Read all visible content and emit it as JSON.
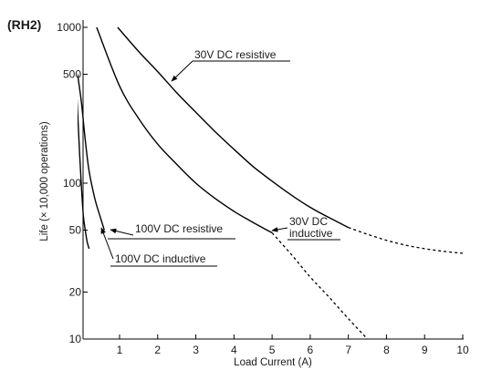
{
  "chart_data": {
    "type": "line",
    "title": "(RH2)",
    "xlabel": "Load Current (A)",
    "ylabel": "Life (× 10,000 operations)",
    "x_scale": "linear",
    "y_scale": "log",
    "xlim": [
      0,
      10
    ],
    "ylim": [
      10,
      1000
    ],
    "x_ticks": [
      1,
      2,
      3,
      4,
      5,
      6,
      7,
      8,
      9,
      10
    ],
    "y_ticks": [
      10,
      20,
      50,
      100,
      500,
      1000
    ],
    "grid": false,
    "legend": "none (series labelled directly on curves)",
    "series": [
      {
        "name": "30V DC resistive",
        "underlined": true,
        "color": "#000000",
        "solid_points": [
          [
            0.95,
            1000
          ],
          [
            1.5,
            700
          ],
          [
            2,
            520
          ],
          [
            2.5,
            380
          ],
          [
            3,
            285
          ],
          [
            3.5,
            215
          ],
          [
            4,
            165
          ],
          [
            4.5,
            128
          ],
          [
            5,
            103
          ],
          [
            5.5,
            84
          ],
          [
            6,
            70
          ],
          [
            6.5,
            60
          ],
          [
            7,
            52
          ]
        ],
        "dashed_points": [
          [
            7,
            52
          ],
          [
            7.5,
            47
          ],
          [
            8,
            43
          ],
          [
            8.5,
            40
          ],
          [
            9,
            38
          ],
          [
            9.5,
            36.5
          ],
          [
            10,
            35.5
          ]
        ]
      },
      {
        "name": "30V DC inductive",
        "name_lines": [
          "30V DC",
          "inductive"
        ],
        "underlined": true,
        "color": "#000000",
        "solid_points": [
          [
            0.4,
            1000
          ],
          [
            1,
            420
          ],
          [
            1.5,
            260
          ],
          [
            2,
            178
          ],
          [
            2.5,
            132
          ],
          [
            3,
            100
          ],
          [
            3.5,
            80
          ],
          [
            4,
            66
          ],
          [
            4.5,
            56
          ],
          [
            5,
            48
          ]
        ],
        "dashed_points": [
          [
            5,
            48
          ],
          [
            5.5,
            35
          ],
          [
            6,
            25
          ],
          [
            6.5,
            18.5
          ],
          [
            7,
            13.5
          ],
          [
            7.5,
            10
          ]
        ]
      },
      {
        "name": "100V DC resistive",
        "underlined": true,
        "color": "#000000",
        "solid_points": [
          [
            -0.1,
            500
          ],
          [
            0,
            330
          ],
          [
            0.1,
            190
          ],
          [
            0.2,
            120
          ],
          [
            0.35,
            80
          ],
          [
            0.5,
            60
          ],
          [
            0.6,
            50
          ]
        ]
      },
      {
        "name": "100V DC inductive",
        "underlined": true,
        "color": "#000000",
        "solid_points": [
          [
            -0.15,
            500
          ],
          [
            -0.1,
            290
          ],
          [
            -0.05,
            160
          ],
          [
            0,
            95
          ],
          [
            0.05,
            62
          ],
          [
            0.1,
            50
          ],
          [
            0.15,
            42
          ],
          [
            0.2,
            38
          ]
        ]
      }
    ]
  }
}
